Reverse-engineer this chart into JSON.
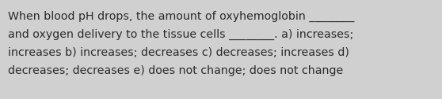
{
  "background_color": "#d0d0d0",
  "text_lines": [
    "When blood pH drops, the amount of oxyhemoglobin ________",
    "and oxygen delivery to the tissue cells ________. a) increases;",
    "increases b) increases; decreases c) decreases; increases d)",
    "decreases; decreases e) does not change; does not change"
  ],
  "font_size": 10.2,
  "font_color": "#2a2a2a",
  "font_family": "DejaVu Sans",
  "fig_width": 5.58,
  "fig_height": 1.26,
  "dpi": 100
}
